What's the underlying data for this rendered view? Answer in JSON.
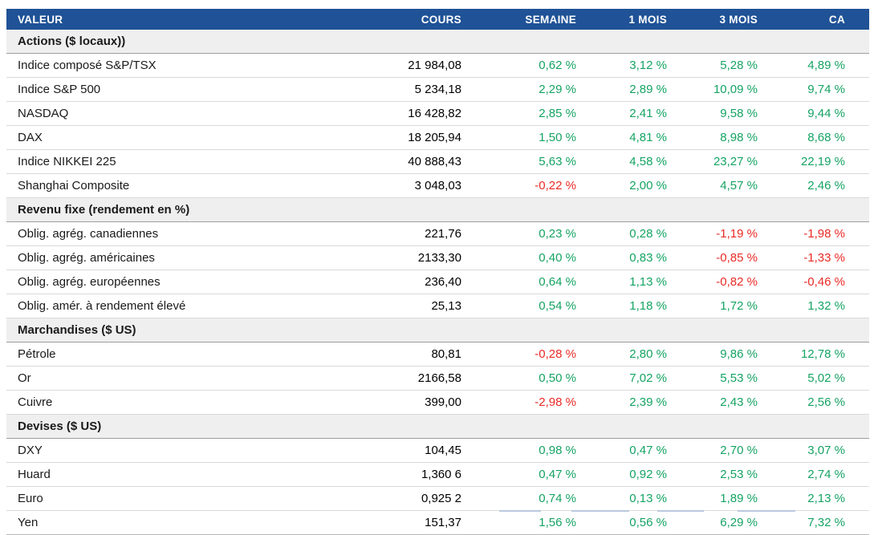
{
  "colors": {
    "header_bg": "#1f5296",
    "positive": "#15a363",
    "negative": "#e92a25",
    "section_bg": "#efefef"
  },
  "chart_data": {
    "type": "table",
    "columns": [
      "VALEUR",
      "COURS",
      "SEMAINE",
      "1 MOIS",
      "3 MOIS",
      "CA"
    ],
    "sections": [
      {
        "title": "Actions ($ locaux))",
        "rows": [
          {
            "label": "Indice composé S&P/TSX",
            "cours": "21 984,08",
            "semaine": "0,62 %",
            "mois1": "3,12 %",
            "mois3": "5,28 %",
            "ca": "4,89 %"
          },
          {
            "label": "Indice S&P 500",
            "cours": "5 234,18",
            "semaine": "2,29 %",
            "mois1": "2,89 %",
            "mois3": "10,09 %",
            "ca": "9,74 %"
          },
          {
            "label": "NASDAQ",
            "cours": "16 428,82",
            "semaine": "2,85 %",
            "mois1": "2,41 %",
            "mois3": "9,58 %",
            "ca": "9,44 %"
          },
          {
            "label": "DAX",
            "cours": "18 205,94",
            "semaine": "1,50 %",
            "mois1": "4,81 %",
            "mois3": "8,98 %",
            "ca": "8,68 %"
          },
          {
            "label": "Indice NIKKEI 225",
            "cours": "40 888,43",
            "semaine": "5,63 %",
            "mois1": "4,58 %",
            "mois3": "23,27 %",
            "ca": "22,19 %"
          },
          {
            "label": "Shanghai Composite",
            "cours": "3 048,03",
            "semaine": "-0,22 %",
            "mois1": "2,00 %",
            "mois3": "4,57 %",
            "ca": "2,46 %"
          }
        ]
      },
      {
        "title": "Revenu fixe (rendement en %)",
        "rows": [
          {
            "label": "Oblig. agrég. canadiennes",
            "cours": "221,76",
            "semaine": "0,23 %",
            "mois1": "0,28 %",
            "mois3": "-1,19 %",
            "ca": "-1,98 %"
          },
          {
            "label": "Oblig. agrég. américaines",
            "cours": "2133,30",
            "semaine": "0,40 %",
            "mois1": "0,83 %",
            "mois3": "-0,85 %",
            "ca": "-1,33 %"
          },
          {
            "label": "Oblig. agrég. européennes",
            "cours": "236,40",
            "semaine": "0,64 %",
            "mois1": "1,13 %",
            "mois3": "-0,82 %",
            "ca": "-0,46 %"
          },
          {
            "label": "Oblig. amér. à rendement élevé",
            "cours": "25,13",
            "semaine": "0,54 %",
            "mois1": "1,18 %",
            "mois3": "1,72 %",
            "ca": "1,32 %"
          }
        ]
      },
      {
        "title": "Marchandises ($ US)",
        "rows": [
          {
            "label": "Pétrole",
            "cours": "80,81",
            "semaine": "-0,28 %",
            "mois1": "2,80 %",
            "mois3": "9,86 %",
            "ca": "12,78 %"
          },
          {
            "label": "Or",
            "cours": "2166,58",
            "semaine": "0,50 %",
            "mois1": "7,02 %",
            "mois3": "5,53 %",
            "ca": "5,02 %"
          },
          {
            "label": "Cuivre",
            "cours": "399,00",
            "semaine": "-2,98 %",
            "mois1": "2,39 %",
            "mois3": "2,43 %",
            "ca": "2,56 %"
          }
        ]
      },
      {
        "title": "Devises ($ US)",
        "rows": [
          {
            "label": "DXY",
            "cours": "104,45",
            "semaine": "0,98 %",
            "mois1": "0,47 %",
            "mois3": "2,70 %",
            "ca": "3,07 %"
          },
          {
            "label": "Huard",
            "cours": "1,360 6",
            "semaine": "0,47 %",
            "mois1": "0,92 %",
            "mois3": "2,53 %",
            "ca": "2,74 %"
          },
          {
            "label": "Euro",
            "cours": "0,925 2",
            "semaine": "0,74 %",
            "mois1": "0,13 %",
            "mois3": "1,89 %",
            "ca": "2,13 %"
          },
          {
            "label": "Yen",
            "cours": "151,37",
            "semaine": "1,56 %",
            "mois1": "0,56 %",
            "mois3": "6,29 %",
            "ca": "7,32 %"
          }
        ]
      }
    ]
  }
}
